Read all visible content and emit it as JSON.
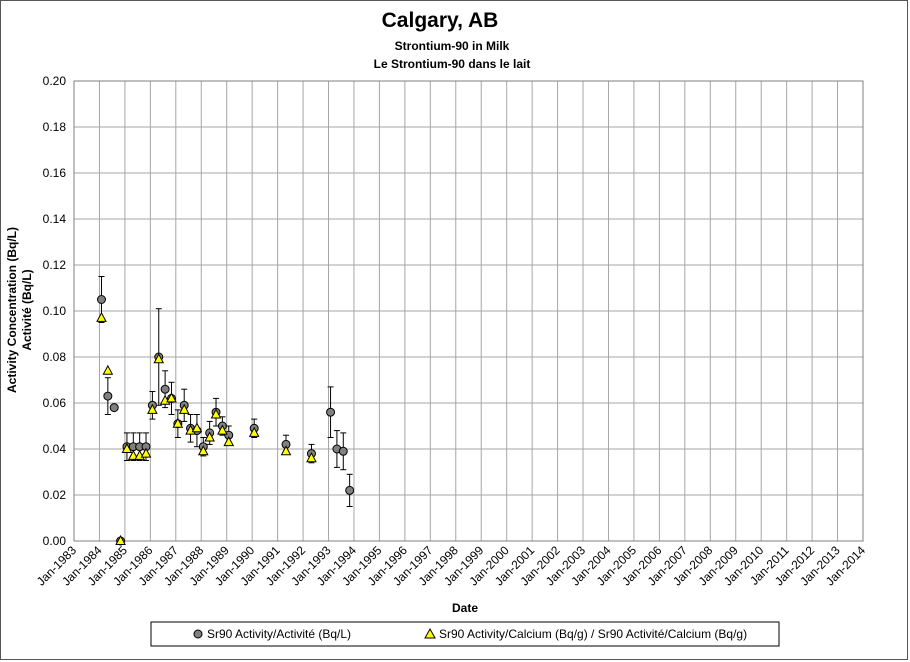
{
  "chart_data": {
    "type": "scatter",
    "title": "Calgary, AB",
    "subtitle_lines": [
      "Strontium-90 in Milk",
      "Le Strontium-90 dans le lait"
    ],
    "xlabel": "Date",
    "ylabel_lines": [
      "Activity Concentration (Bq/L)",
      "Activité (Bq/L)"
    ],
    "ylim": [
      0,
      0.2
    ],
    "y_ticks": [
      "0.00",
      "0.02",
      "0.04",
      "0.06",
      "0.08",
      "0.10",
      "0.12",
      "0.14",
      "0.16",
      "0.18",
      "0.20"
    ],
    "x_range": [
      1983,
      2014
    ],
    "x_tick_labels": [
      "Jan-1983",
      "Jan-1984",
      "Jan-1985",
      "Jan-1986",
      "Jan-1987",
      "Jan-1988",
      "Jan-1989",
      "Jan-1990",
      "Jan-1991",
      "Jan-1992",
      "Jan-1993",
      "Jan-1994",
      "Jan-1995",
      "Jan-1996",
      "Jan-1997",
      "Jan-1998",
      "Jan-1999",
      "Jan-2000",
      "Jan-2001",
      "Jan-2002",
      "Jan-2003",
      "Jan-2004",
      "Jan-2005",
      "Jan-2006",
      "Jan-2007",
      "Jan-2008",
      "Jan-2009",
      "Jan-2010",
      "Jan-2011",
      "Jan-2012",
      "Jan-2013",
      "Jan-2014"
    ],
    "grid": true,
    "legend_position": "bottom",
    "series": [
      {
        "name": "Sr90 Activity/Activité (Bq/L)",
        "marker": "circle",
        "color": "#808080",
        "points": [
          {
            "x": 1984.08,
            "y": 0.105,
            "err": 0.01
          },
          {
            "x": 1984.33,
            "y": 0.063,
            "err": 0.008
          },
          {
            "x": 1984.58,
            "y": 0.058,
            "err": 0
          },
          {
            "x": 1984.83,
            "y": 0.0,
            "err": 0
          },
          {
            "x": 1985.08,
            "y": 0.041,
            "err": 0.006
          },
          {
            "x": 1985.33,
            "y": 0.041,
            "err": 0.006
          },
          {
            "x": 1985.58,
            "y": 0.041,
            "err": 0.006
          },
          {
            "x": 1985.83,
            "y": 0.041,
            "err": 0.006
          },
          {
            "x": 1986.08,
            "y": 0.059,
            "err": 0.006
          },
          {
            "x": 1986.33,
            "y": 0.08,
            "err": 0.021
          },
          {
            "x": 1986.58,
            "y": 0.066,
            "err": 0.008
          },
          {
            "x": 1986.83,
            "y": 0.062,
            "err": 0.007
          },
          {
            "x": 1987.08,
            "y": 0.051,
            "err": 0.006
          },
          {
            "x": 1987.33,
            "y": 0.059,
            "err": 0.007
          },
          {
            "x": 1987.58,
            "y": 0.049,
            "err": 0.006
          },
          {
            "x": 1987.83,
            "y": 0.048,
            "err": 0.007
          },
          {
            "x": 1988.08,
            "y": 0.041,
            "err": 0.004
          },
          {
            "x": 1988.33,
            "y": 0.047,
            "err": 0.005
          },
          {
            "x": 1988.58,
            "y": 0.056,
            "err": 0.006
          },
          {
            "x": 1988.83,
            "y": 0.05,
            "err": 0.004
          },
          {
            "x": 1989.08,
            "y": 0.046,
            "err": 0.004
          },
          {
            "x": 1990.08,
            "y": 0.049,
            "err": 0.004
          },
          {
            "x": 1991.33,
            "y": 0.042,
            "err": 0.004
          },
          {
            "x": 1992.33,
            "y": 0.038,
            "err": 0.004
          },
          {
            "x": 1993.08,
            "y": 0.056,
            "err": 0.011
          },
          {
            "x": 1993.33,
            "y": 0.04,
            "err": 0.008
          },
          {
            "x": 1993.58,
            "y": 0.039,
            "err": 0.008
          },
          {
            "x": 1993.83,
            "y": 0.022,
            "err": 0.007
          }
        ]
      },
      {
        "name": "Sr90 Activity/Calcium (Bq/g) / Sr90 Activité/Calcium (Bq/g)",
        "marker": "triangle",
        "color": "#ffff00",
        "points": [
          {
            "x": 1984.08,
            "y": 0.097
          },
          {
            "x": 1984.33,
            "y": 0.074
          },
          {
            "x": 1984.83,
            "y": 0.0
          },
          {
            "x": 1985.08,
            "y": 0.04
          },
          {
            "x": 1985.33,
            "y": 0.037
          },
          {
            "x": 1985.58,
            "y": 0.037
          },
          {
            "x": 1985.83,
            "y": 0.038
          },
          {
            "x": 1986.08,
            "y": 0.057
          },
          {
            "x": 1986.33,
            "y": 0.079
          },
          {
            "x": 1986.58,
            "y": 0.061
          },
          {
            "x": 1986.83,
            "y": 0.062
          },
          {
            "x": 1987.08,
            "y": 0.051
          },
          {
            "x": 1987.33,
            "y": 0.057
          },
          {
            "x": 1987.58,
            "y": 0.048
          },
          {
            "x": 1987.83,
            "y": 0.049
          },
          {
            "x": 1988.08,
            "y": 0.039
          },
          {
            "x": 1988.33,
            "y": 0.045
          },
          {
            "x": 1988.58,
            "y": 0.055
          },
          {
            "x": 1988.83,
            "y": 0.048
          },
          {
            "x": 1989.08,
            "y": 0.043
          },
          {
            "x": 1990.08,
            "y": 0.047
          },
          {
            "x": 1991.33,
            "y": 0.039
          },
          {
            "x": 1992.33,
            "y": 0.036
          }
        ]
      }
    ]
  }
}
